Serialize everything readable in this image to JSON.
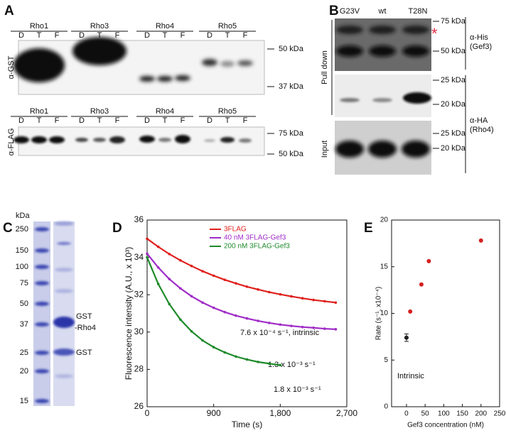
{
  "panel_labels": [
    "A",
    "B",
    "C",
    "D",
    "E"
  ],
  "panel_a": {
    "lane_groups": [
      "Rho1",
      "Rho3",
      "Rho4",
      "Rho5"
    ],
    "lanes": [
      "D",
      "T",
      "F"
    ],
    "antibody_top": "α-GST",
    "antibody_bottom": "α-FLAG",
    "markers_top": [
      "50 kDa",
      "37 kDa"
    ],
    "markers_bottom": [
      "75 kDa",
      "50 kDa"
    ]
  },
  "panel_b": {
    "lanes": [
      "G23V",
      "wt",
      "T28N"
    ],
    "asterisk": "*",
    "his_markers": [
      "75 kDa",
      "50 kDa"
    ],
    "his_label": [
      "α-His",
      "(Gef3)"
    ],
    "ha_markers": [
      "25 kDa",
      "20 kDa"
    ],
    "input_markers": [
      "25 kDa",
      "20 kDa"
    ],
    "ha_label": [
      "α-HA",
      "(Rho4)"
    ],
    "side_labels": [
      "Pull down",
      "Input"
    ]
  },
  "panel_c": {
    "unit": "kDa",
    "markers": [
      "250",
      "150",
      "100",
      "75",
      "50",
      "37",
      "25",
      "20",
      "15"
    ],
    "band_labels": [
      "GST",
      "-Rho4",
      "GST"
    ]
  },
  "chart_data": [
    {
      "type": "line",
      "xlabel": "Time (s)",
      "ylabel": "Fluorescence intensity (A.U., x 10³)",
      "x": [
        0,
        150,
        300,
        450,
        600,
        750,
        900,
        1050,
        1200,
        1350,
        1500,
        1650,
        1800,
        1950,
        2100,
        2250,
        2400,
        2550
      ],
      "series": [
        {
          "name": "3FLAG",
          "color": "#e0201c",
          "values": [
            35.0,
            34.57,
            34.18,
            33.84,
            33.54,
            33.26,
            33.02,
            32.8,
            32.61,
            32.43,
            32.28,
            32.14,
            32.02,
            31.91,
            31.81,
            31.72,
            31.65,
            31.58
          ]
        },
        {
          "name": "40 nM 3FLAG-Gef3",
          "color": "#a02cc8",
          "values": [
            34.2,
            33.46,
            32.84,
            32.34,
            31.92,
            31.58,
            31.3,
            31.07,
            30.88,
            30.73,
            30.6,
            30.49,
            30.4,
            30.33,
            30.27,
            30.23,
            30.18,
            30.15
          ]
        },
        {
          "name": "200 nM 3FLAG-Gef3",
          "color": "#1e8a2a",
          "values": [
            34.0,
            32.58,
            31.5,
            30.67,
            30.04,
            29.55,
            29.19,
            28.91,
            28.69,
            28.53,
            28.4,
            28.31,
            28.23,
            null,
            null,
            null,
            null,
            null
          ]
        }
      ],
      "annotations": [
        "7.6 x 10⁻⁴ s⁻¹, intrinsic",
        "1.3 x 10⁻³ s⁻¹",
        "1.8 x 10⁻³ s⁻¹"
      ],
      "xlim": [
        0,
        2700
      ],
      "xticks": [
        0,
        900,
        {
          "value": 1800,
          "label": "1,800"
        },
        {
          "value": 2700,
          "label": "2,700"
        }
      ],
      "ylim": [
        26,
        36
      ],
      "yticks": [
        26,
        28,
        30,
        32,
        34,
        36
      ],
      "grid": false,
      "legend": "top-left"
    },
    {
      "type": "scatter",
      "xlabel": "Gef3 concentration (nM)",
      "ylabel": "Rate (s⁻¹, x10⁻⁴)",
      "series": [
        {
          "color": "#222222",
          "x": [
            0
          ],
          "values": [
            7.4
          ],
          "errors": [
            0.4
          ]
        },
        {
          "color": "#d42020",
          "x": [
            10,
            40,
            60,
            200
          ],
          "values": [
            10.2,
            13.1,
            15.6,
            17.8
          ]
        }
      ],
      "annotations": [
        "Intrinsic"
      ],
      "xlim": [
        -40,
        250
      ],
      "xticks": [
        0,
        50,
        100,
        150,
        200,
        250
      ],
      "ylim": [
        0,
        20
      ],
      "yticks": [
        0,
        5,
        10,
        15,
        20
      ],
      "grid": false
    }
  ]
}
